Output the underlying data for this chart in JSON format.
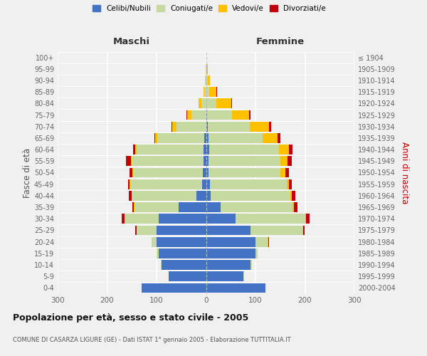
{
  "age_groups": [
    "0-4",
    "5-9",
    "10-14",
    "15-19",
    "20-24",
    "25-29",
    "30-34",
    "35-39",
    "40-44",
    "45-49",
    "50-54",
    "55-59",
    "60-64",
    "65-69",
    "70-74",
    "75-79",
    "80-84",
    "85-89",
    "90-94",
    "95-99",
    "100+"
  ],
  "birth_years": [
    "2000-2004",
    "1995-1999",
    "1990-1994",
    "1985-1989",
    "1980-1984",
    "1975-1979",
    "1970-1974",
    "1965-1969",
    "1960-1964",
    "1955-1959",
    "1950-1954",
    "1945-1949",
    "1940-1944",
    "1935-1939",
    "1930-1934",
    "1925-1929",
    "1920-1924",
    "1915-1919",
    "1910-1914",
    "1905-1909",
    "≤ 1904"
  ],
  "male": {
    "celibe": [
      130,
      75,
      90,
      95,
      100,
      100,
      95,
      55,
      20,
      8,
      7,
      5,
      5,
      3,
      0,
      0,
      0,
      0,
      0,
      0,
      0
    ],
    "coniugato": [
      0,
      0,
      2,
      5,
      10,
      40,
      70,
      90,
      130,
      145,
      140,
      145,
      135,
      95,
      60,
      30,
      10,
      3,
      2,
      1,
      0
    ],
    "vedovo": [
      0,
      0,
      0,
      0,
      0,
      1,
      0,
      1,
      1,
      1,
      2,
      2,
      3,
      5,
      8,
      8,
      5,
      2,
      0,
      0,
      0
    ],
    "divorziato": [
      0,
      0,
      0,
      0,
      0,
      2,
      5,
      3,
      5,
      3,
      5,
      10,
      5,
      2,
      2,
      2,
      0,
      0,
      0,
      0,
      0
    ]
  },
  "female": {
    "nubile": [
      120,
      75,
      90,
      100,
      100,
      90,
      60,
      30,
      10,
      8,
      5,
      5,
      7,
      5,
      3,
      2,
      1,
      1,
      1,
      0,
      0
    ],
    "coniugata": [
      0,
      2,
      3,
      5,
      25,
      105,
      140,
      145,
      160,
      155,
      145,
      145,
      140,
      110,
      85,
      50,
      20,
      5,
      2,
      1,
      0
    ],
    "vedova": [
      0,
      0,
      0,
      0,
      1,
      1,
      2,
      2,
      3,
      5,
      10,
      15,
      20,
      30,
      40,
      35,
      30,
      15,
      5,
      2,
      0
    ],
    "divorziata": [
      0,
      0,
      0,
      0,
      1,
      3,
      8,
      8,
      8,
      5,
      8,
      8,
      8,
      5,
      4,
      3,
      2,
      1,
      0,
      0,
      0
    ]
  },
  "color_celibe": "#4472c4",
  "color_coniugato": "#c5d9a0",
  "color_vedovo": "#ffc000",
  "color_divorziato": "#c0000b",
  "title": "Popolazione per età, sesso e stato civile - 2005",
  "subtitle": "COMUNE DI CASARZA LIGURE (GE) - Dati ISTAT 1° gennaio 2005 - Elaborazione TUTTITALIA.IT",
  "ylabel_left": "Fasce di età",
  "ylabel_right": "Anni di nascita",
  "xlabel_left": "Maschi",
  "xlabel_right": "Femmine",
  "xlim": 300,
  "bar_height": 0.85
}
